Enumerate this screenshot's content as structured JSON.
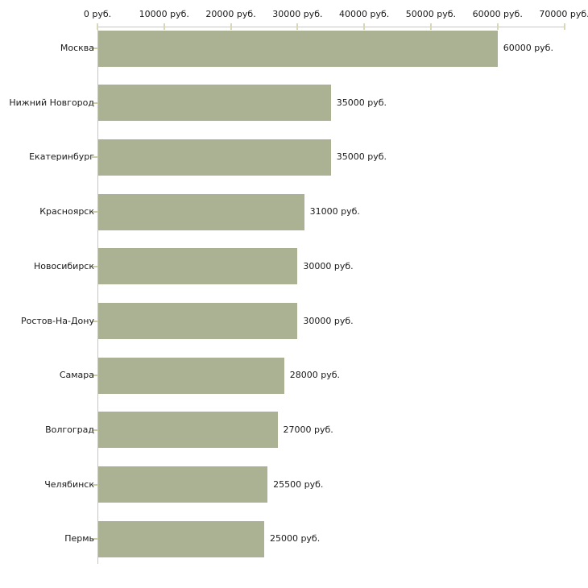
{
  "chart_data": {
    "type": "bar",
    "orientation": "horizontal",
    "title": "",
    "categories": [
      "Москва",
      "Нижний Новгород",
      "Екатеринбург",
      "Красноярск",
      "Новосибирск",
      "Ростов-На-Дону",
      "Самара",
      "Волгоград",
      "Челябинск",
      "Пермь"
    ],
    "values": [
      60000,
      35000,
      35000,
      31000,
      30000,
      30000,
      28000,
      27000,
      25500,
      25000
    ],
    "bar_value_labels": [
      "60000 руб.",
      "35000 руб.",
      "35000 руб.",
      "31000 руб.",
      "30000 руб.",
      "30000 руб.",
      "28000 руб.",
      "27000 руб.",
      "25500 руб.",
      "25000 руб."
    ],
    "x_axis": {
      "position": "top",
      "min": 0,
      "max": 70000,
      "ticks": [
        0,
        10000,
        20000,
        30000,
        40000,
        50000,
        60000,
        70000
      ],
      "tick_labels": [
        "0 руб.",
        "10000 руб.",
        "20000 руб.",
        "30000 руб.",
        "40000 руб.",
        "50000 руб.",
        "60000 руб.",
        "70000 руб."
      ]
    },
    "unit": "руб.",
    "grid": false,
    "legend": "none"
  },
  "style": {
    "bar_color": "#abb294",
    "axis_line_color": "#c6c6c6",
    "tick_mark_color": "#d8d8b4",
    "category_tick_color": "#ccccaa",
    "text_color": "#1a1a1a",
    "background_color": "#ffffff"
  }
}
